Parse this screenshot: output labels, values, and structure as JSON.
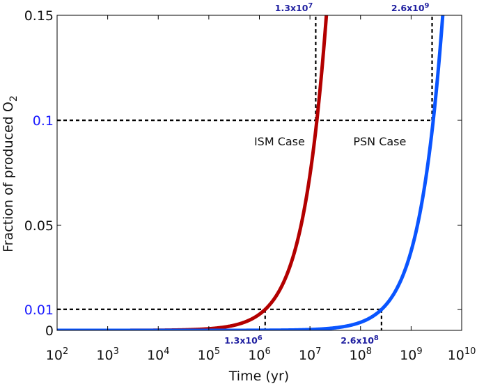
{
  "chart_data": {
    "type": "line",
    "xlabel": "Time (yr)",
    "ylabel": "Fraction of produced O",
    "ylabel_subscript": "2",
    "xscale": "log",
    "xlim": [
      100,
      10000000000
    ],
    "ylim": [
      0,
      0.15
    ],
    "x_ticks": [
      {
        "base": "10",
        "exp": "2",
        "value": 100
      },
      {
        "base": "10",
        "exp": "3",
        "value": 1000
      },
      {
        "base": "10",
        "exp": "4",
        "value": 10000
      },
      {
        "base": "10",
        "exp": "5",
        "value": 100000
      },
      {
        "base": "10",
        "exp": "6",
        "value": 1000000
      },
      {
        "base": "10",
        "exp": "7",
        "value": 10000000
      },
      {
        "base": "10",
        "exp": "8",
        "value": 100000000
      },
      {
        "base": "10",
        "exp": "9",
        "value": 1000000000
      },
      {
        "base": "10",
        "exp": "10",
        "value": 10000000000
      }
    ],
    "y_ticks": [
      {
        "label": "0",
        "value": 0,
        "color": "#111111"
      },
      {
        "label": "0.01",
        "value": 0.01,
        "color": "#1a1aff"
      },
      {
        "label": "0.05",
        "value": 0.05,
        "color": "#111111"
      },
      {
        "label": "0.1",
        "value": 0.1,
        "color": "#1a1aff"
      },
      {
        "label": "0.15",
        "value": 0.15,
        "color": "#111111"
      }
    ],
    "grid": false,
    "series": [
      {
        "name": "ISM Case",
        "color": "#b30000",
        "tau": 130000000
      },
      {
        "name": "PSN Case",
        "color": "#0a55ff",
        "tau": 26000000000
      }
    ],
    "reference_lines": [
      {
        "y": 0.01,
        "x_end": 1300000
      },
      {
        "y": 0.01,
        "x_end": 260000000
      },
      {
        "y": 0.1,
        "x_end": 13000000
      },
      {
        "y": 0.1,
        "x_end": 2600000000
      }
    ],
    "annotations": [
      {
        "mantissa": "1.3",
        "base": "x10",
        "exp": "6",
        "x": 1300000,
        "y": 0.01,
        "position": "below"
      },
      {
        "mantissa": "2.6",
        "base": "x10",
        "exp": "8",
        "x": 260000000,
        "y": 0.01,
        "position": "below"
      },
      {
        "mantissa": "1.3",
        "base": "x10",
        "exp": "7",
        "x": 13000000,
        "y": 0.15,
        "position": "above"
      },
      {
        "mantissa": "2.6",
        "base": "x10",
        "exp": "9",
        "x": 2600000000,
        "y": 0.15,
        "position": "above"
      }
    ],
    "case_labels": [
      {
        "text": "ISM Case",
        "x": 2500000,
        "y": 0.09
      },
      {
        "text": "PSN Case",
        "x": 240000000,
        "y": 0.09
      }
    ],
    "colors": {
      "ism": "#b30000",
      "psn": "#0a55ff",
      "annotation": "#1f1fa0",
      "highlight_tick": "#1a1aff"
    }
  }
}
